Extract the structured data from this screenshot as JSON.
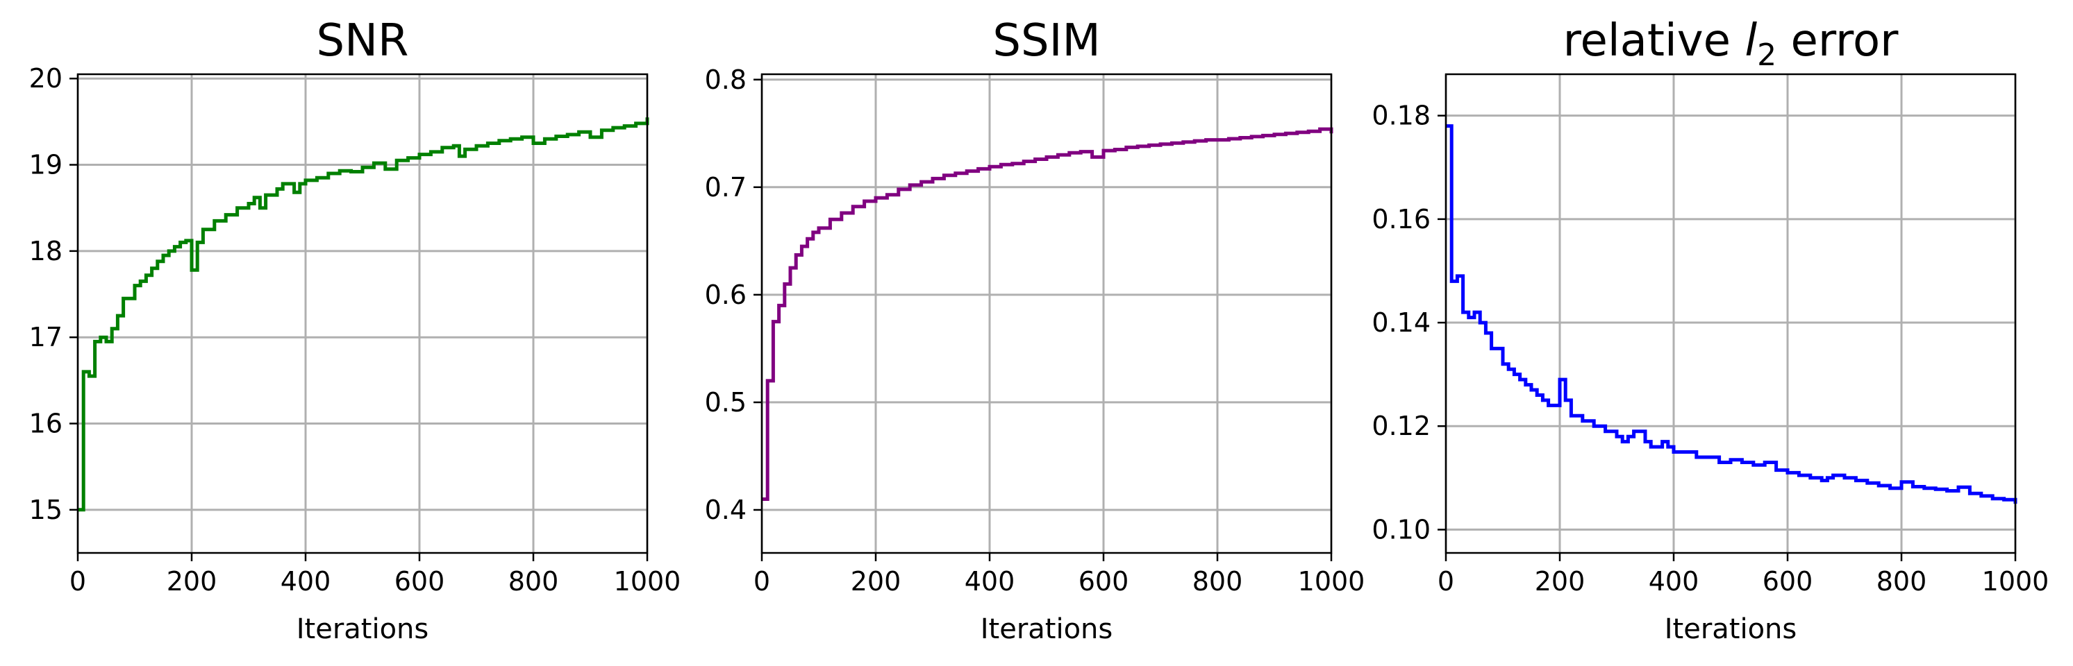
{
  "chart_data": [
    {
      "type": "line",
      "title": "SNR",
      "xlabel": "Iterations",
      "ylabel": "",
      "xlim": [
        0,
        1000
      ],
      "ylim": [
        14.5,
        20.05
      ],
      "xticks": [
        0,
        200,
        400,
        600,
        800,
        1000
      ],
      "yticks": [
        15,
        16,
        17,
        18,
        19,
        20
      ],
      "ytick_labels": [
        "15",
        "16",
        "17",
        "18",
        "19",
        "20"
      ],
      "grid": true,
      "series": [
        {
          "color": "#008000",
          "x": [
            0,
            10,
            20,
            30,
            40,
            50,
            60,
            70,
            80,
            100,
            110,
            120,
            130,
            140,
            150,
            160,
            170,
            180,
            190,
            200,
            210,
            220,
            240,
            260,
            280,
            300,
            310,
            320,
            330,
            350,
            360,
            380,
            390,
            400,
            420,
            440,
            460,
            480,
            500,
            520,
            540,
            560,
            580,
            600,
            620,
            640,
            660,
            670,
            680,
            700,
            720,
            740,
            760,
            780,
            800,
            820,
            840,
            860,
            880,
            900,
            920,
            940,
            960,
            980,
            1000
          ],
          "values": [
            15.0,
            16.6,
            16.55,
            16.95,
            17.0,
            16.95,
            17.1,
            17.25,
            17.45,
            17.6,
            17.65,
            17.72,
            17.8,
            17.88,
            17.95,
            18.0,
            18.05,
            18.1,
            18.12,
            17.78,
            18.1,
            18.25,
            18.35,
            18.42,
            18.5,
            18.55,
            18.62,
            18.5,
            18.65,
            18.72,
            18.78,
            18.68,
            18.78,
            18.82,
            18.85,
            18.9,
            18.93,
            18.92,
            18.97,
            19.02,
            18.95,
            19.05,
            19.08,
            19.12,
            19.15,
            19.2,
            19.22,
            19.1,
            19.18,
            19.22,
            19.25,
            19.28,
            19.3,
            19.32,
            19.25,
            19.3,
            19.33,
            19.35,
            19.38,
            19.32,
            19.4,
            19.43,
            19.45,
            19.48,
            19.55
          ]
        }
      ]
    },
    {
      "type": "line",
      "title": "SSIM",
      "xlabel": "Iterations",
      "ylabel": "",
      "xlim": [
        0,
        1000
      ],
      "ylim": [
        0.36,
        0.805
      ],
      "xticks": [
        0,
        200,
        400,
        600,
        800,
        1000
      ],
      "yticks": [
        0.4,
        0.5,
        0.6,
        0.7,
        0.8
      ],
      "ytick_labels": [
        "0.4",
        "0.5",
        "0.6",
        "0.7",
        "0.8"
      ],
      "grid": true,
      "series": [
        {
          "color": "#800080",
          "x": [
            0,
            10,
            20,
            30,
            40,
            50,
            60,
            70,
            80,
            90,
            100,
            120,
            140,
            160,
            180,
            200,
            220,
            240,
            260,
            280,
            300,
            320,
            340,
            360,
            380,
            400,
            420,
            440,
            460,
            480,
            500,
            520,
            540,
            560,
            580,
            600,
            620,
            640,
            660,
            680,
            700,
            720,
            740,
            760,
            780,
            800,
            820,
            840,
            860,
            880,
            900,
            920,
            940,
            960,
            980,
            1000
          ],
          "values": [
            0.41,
            0.52,
            0.575,
            0.59,
            0.61,
            0.625,
            0.637,
            0.645,
            0.652,
            0.658,
            0.662,
            0.67,
            0.676,
            0.682,
            0.687,
            0.69,
            0.693,
            0.698,
            0.702,
            0.705,
            0.708,
            0.711,
            0.713,
            0.715,
            0.717,
            0.719,
            0.721,
            0.722,
            0.724,
            0.726,
            0.728,
            0.73,
            0.732,
            0.733,
            0.728,
            0.734,
            0.735,
            0.737,
            0.738,
            0.739,
            0.74,
            0.741,
            0.742,
            0.743,
            0.744,
            0.744,
            0.745,
            0.746,
            0.747,
            0.748,
            0.749,
            0.75,
            0.751,
            0.752,
            0.754,
            0.75
          ]
        }
      ]
    },
    {
      "type": "line",
      "title": "relative l2 error",
      "xlabel": "Iterations",
      "ylabel": "",
      "xlim": [
        0,
        1000
      ],
      "ylim": [
        0.0955,
        0.188
      ],
      "xticks": [
        0,
        200,
        400,
        600,
        800,
        1000
      ],
      "yticks": [
        0.1,
        0.12,
        0.14,
        0.16,
        0.18
      ],
      "ytick_labels": [
        "0.10",
        "0.12",
        "0.14",
        "0.16",
        "0.18"
      ],
      "grid": true,
      "series": [
        {
          "color": "#0000ff",
          "x": [
            0,
            10,
            20,
            30,
            40,
            50,
            60,
            70,
            80,
            100,
            110,
            120,
            130,
            140,
            150,
            160,
            170,
            180,
            190,
            200,
            210,
            220,
            240,
            260,
            280,
            300,
            310,
            320,
            330,
            350,
            360,
            380,
            390,
            400,
            420,
            440,
            460,
            480,
            500,
            520,
            540,
            560,
            580,
            600,
            620,
            640,
            660,
            670,
            680,
            700,
            720,
            740,
            760,
            780,
            800,
            820,
            840,
            860,
            880,
            900,
            920,
            940,
            960,
            980,
            1000
          ],
          "values": [
            0.178,
            0.148,
            0.149,
            0.142,
            0.141,
            0.142,
            0.14,
            0.138,
            0.135,
            0.132,
            0.131,
            0.13,
            0.129,
            0.128,
            0.127,
            0.126,
            0.125,
            0.124,
            0.124,
            0.129,
            0.125,
            0.122,
            0.121,
            0.12,
            0.119,
            0.118,
            0.117,
            0.118,
            0.119,
            0.117,
            0.116,
            0.117,
            0.116,
            0.115,
            0.115,
            0.114,
            0.114,
            0.113,
            0.1135,
            0.113,
            0.1125,
            0.113,
            0.1115,
            0.111,
            0.1105,
            0.11,
            0.1095,
            0.11,
            0.1105,
            0.11,
            0.1095,
            0.109,
            0.1085,
            0.108,
            0.1092,
            0.1083,
            0.108,
            0.1078,
            0.1075,
            0.1082,
            0.107,
            0.1065,
            0.106,
            0.1058,
            0.105
          ]
        }
      ]
    }
  ]
}
